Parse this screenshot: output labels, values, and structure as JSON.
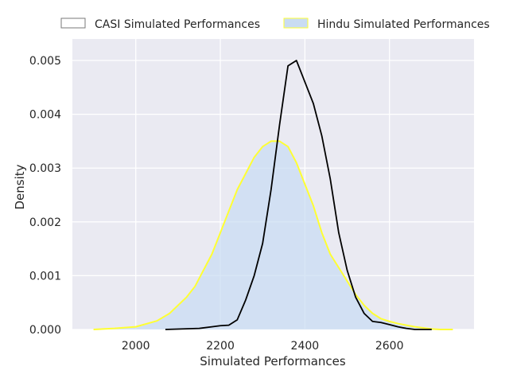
{
  "chart_data": {
    "type": "area",
    "xlabel": "Simulated Performances",
    "ylabel": "Density",
    "xlim": [
      1850,
      2800
    ],
    "ylim": [
      0,
      0.0054
    ],
    "xticks": [
      2000,
      2200,
      2400,
      2600
    ],
    "yticks": [
      0.0,
      0.001,
      0.002,
      0.003,
      0.004,
      0.005
    ],
    "ytick_labels": [
      "0.000",
      "0.001",
      "0.002",
      "0.003",
      "0.004",
      "0.005"
    ],
    "grid": true,
    "legend_position": "top",
    "series": [
      {
        "name": "CASI Simulated Performances",
        "style": "line",
        "color": "#000000",
        "x": [
          2070,
          2150,
          2180,
          2200,
          2220,
          2240,
          2260,
          2280,
          2300,
          2320,
          2340,
          2360,
          2380,
          2400,
          2420,
          2440,
          2460,
          2480,
          2500,
          2520,
          2540,
          2560,
          2580,
          2600,
          2620,
          2640,
          2660,
          2680,
          2700
        ],
        "y": [
          0.0,
          2e-05,
          5e-05,
          7e-05,
          8e-05,
          0.00018,
          0.00055,
          0.001,
          0.0016,
          0.0026,
          0.0038,
          0.0049,
          0.005,
          0.0046,
          0.0042,
          0.0036,
          0.0028,
          0.0018,
          0.0011,
          0.0006,
          0.0003,
          0.00015,
          0.00013,
          9e-05,
          5e-05,
          2e-05,
          0.0,
          0.0,
          0.0
        ]
      },
      {
        "name": "Hindu Simulated Performances",
        "style": "filled",
        "color": "#ffff33",
        "fill": "#c9dcf3",
        "x": [
          1900,
          1950,
          2000,
          2050,
          2080,
          2100,
          2120,
          2140,
          2160,
          2180,
          2200,
          2220,
          2240,
          2260,
          2280,
          2300,
          2320,
          2340,
          2360,
          2380,
          2400,
          2420,
          2440,
          2460,
          2480,
          2500,
          2520,
          2540,
          2560,
          2580,
          2600,
          2620,
          2640,
          2660,
          2680,
          2700,
          2720,
          2750
        ],
        "y": [
          0.0,
          2e-05,
          5e-05,
          0.00016,
          0.0003,
          0.00045,
          0.0006,
          0.0008,
          0.0011,
          0.0014,
          0.0018,
          0.0022,
          0.0026,
          0.0029,
          0.0032,
          0.0034,
          0.0035,
          0.0035,
          0.0034,
          0.0031,
          0.0027,
          0.0023,
          0.0018,
          0.0014,
          0.00115,
          0.0009,
          0.00065,
          0.00045,
          0.0003,
          0.0002,
          0.00015,
          0.00011,
          8e-05,
          5e-05,
          3e-05,
          1e-05,
          0.0,
          0.0
        ]
      }
    ]
  }
}
